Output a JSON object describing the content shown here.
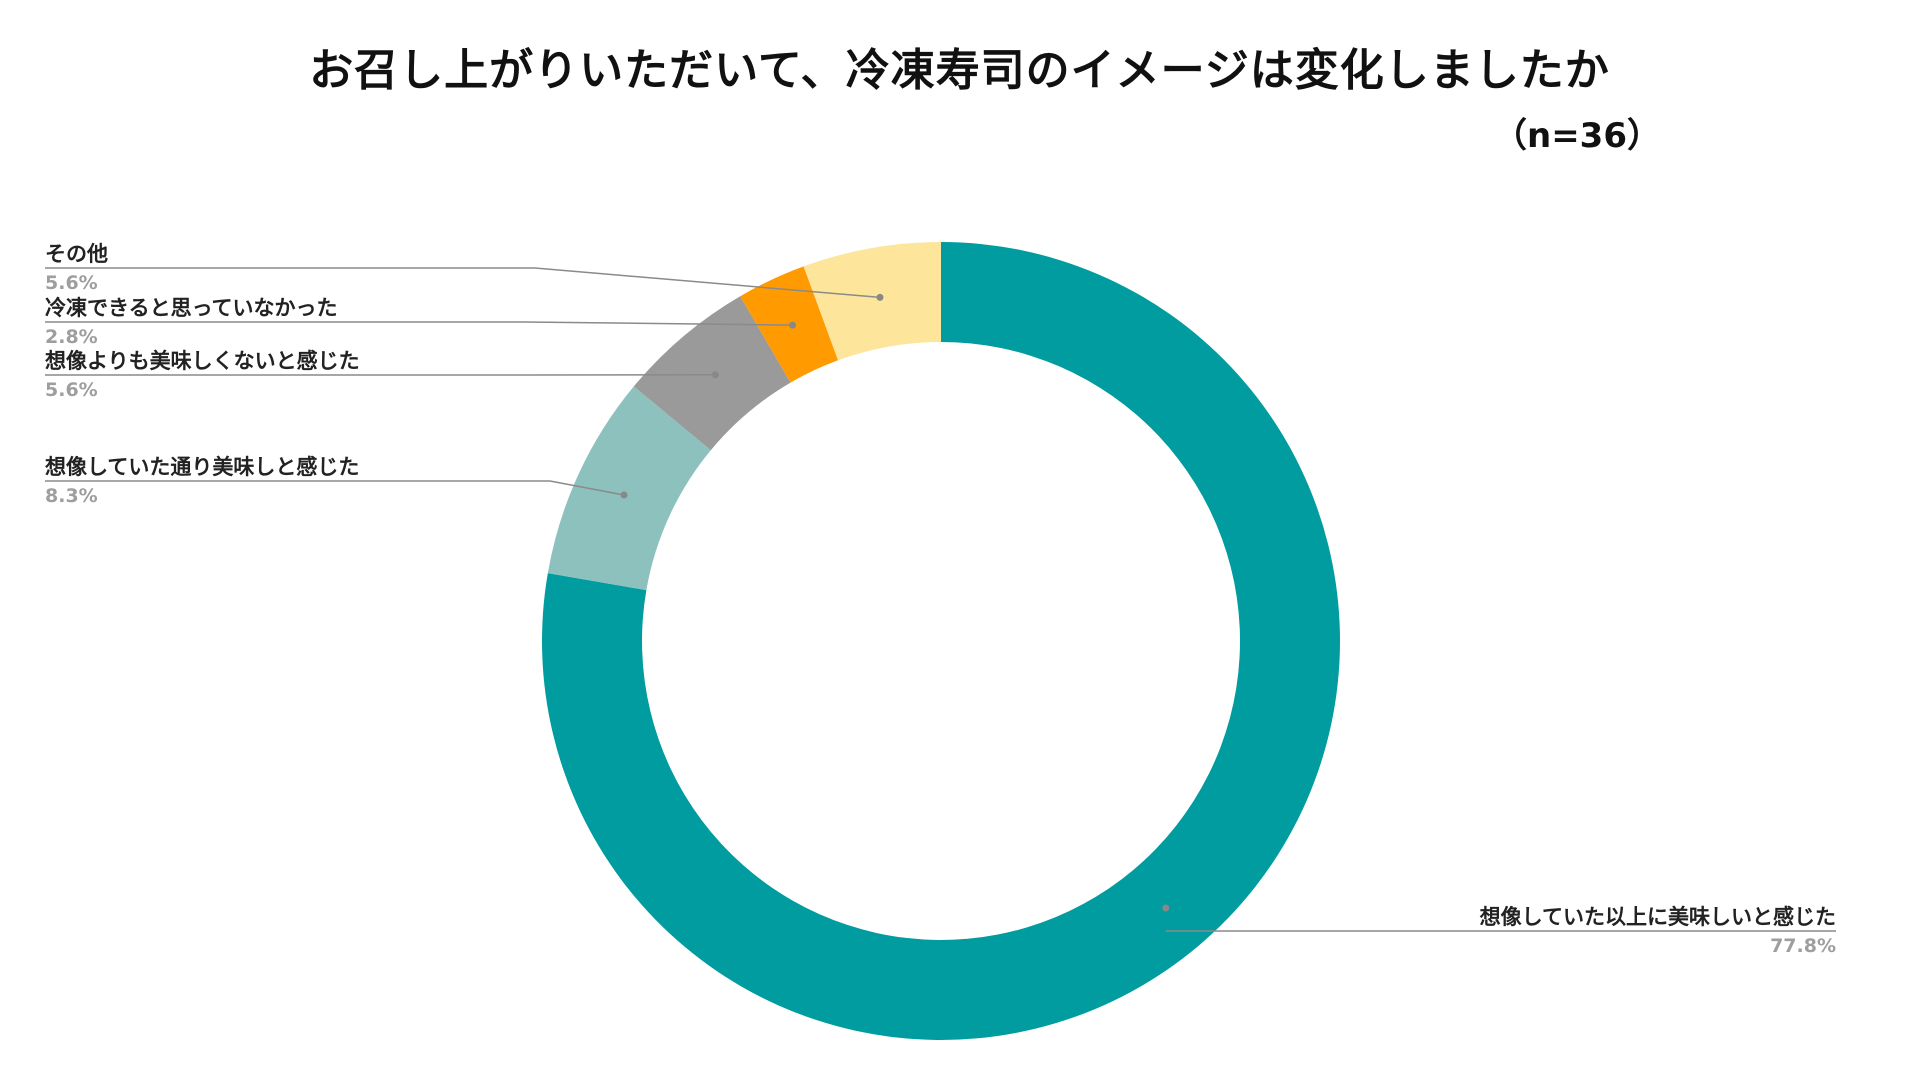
{
  "chart_data": {
    "type": "pie",
    "donut": true,
    "title": "お召し上がりいただいて、冷凍寿司のイメージは変化しましたか",
    "subtitle": "（n=36）",
    "slices": [
      {
        "label": "想像していた以上に美味しいと感じた",
        "value": 77.8,
        "value_label": "77.8%",
        "color": "#009c9f"
      },
      {
        "label": "想像していた通り美味しと感じた",
        "value": 8.3,
        "value_label": "8.3%",
        "color": "#8cc1be"
      },
      {
        "label": "想像よりも美味しくないと感じた",
        "value": 5.6,
        "value_label": "5.6%",
        "color": "#9a9a9a"
      },
      {
        "label": "冷凍できると思っていなかった",
        "value": 2.8,
        "value_label": "2.8%",
        "color": "#ff9a00"
      },
      {
        "label": "その他",
        "value": 5.6,
        "value_label": "5.6%",
        "color": "#fde59b"
      }
    ],
    "start": "top",
    "direction": "clockwise",
    "legend": "leader-lines"
  }
}
